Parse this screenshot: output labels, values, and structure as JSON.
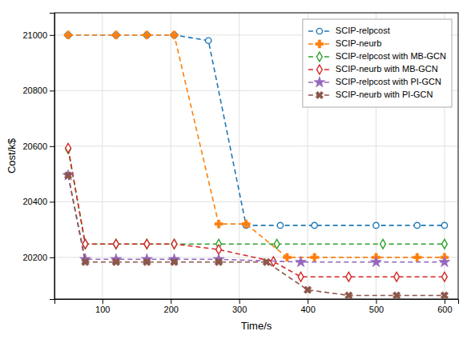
{
  "chart_data": {
    "type": "line",
    "xlabel": "Time/s",
    "ylabel": "Cost/k$",
    "xlim": [
      30,
      620
    ],
    "ylim": [
      20050,
      21080
    ],
    "xticks": [
      100,
      200,
      300,
      400,
      500,
      600
    ],
    "yticks": [
      20200,
      20400,
      20600,
      20800,
      21000
    ],
    "grid": true,
    "legend": "upper right",
    "line_style": "dashed",
    "series": [
      {
        "name": "SCIP-relpcost",
        "color": "#1f77b4",
        "marker": "circle",
        "x": [
          50,
          120,
          165,
          205,
          255,
          310,
          360,
          410,
          500,
          560,
          600
        ],
        "values": [
          21000,
          21000,
          21000,
          21000,
          20980,
          20315,
          20315,
          20315,
          20315,
          20315,
          20315
        ]
      },
      {
        "name": "SCIP-neurb",
        "color": "#ff7f0e",
        "marker": "plus",
        "x": [
          50,
          120,
          165,
          205,
          270,
          310,
          370,
          410,
          500,
          560,
          600
        ],
        "values": [
          21000,
          21000,
          21000,
          21000,
          20320,
          20320,
          20200,
          20200,
          20200,
          20200,
          20200
        ]
      },
      {
        "name": "SCIP-relpcost with MB-GCN",
        "color": "#2ca02c",
        "marker": "diamond",
        "x": [
          50,
          75,
          120,
          165,
          205,
          270,
          355,
          510,
          600
        ],
        "values": [
          20590,
          20248,
          20248,
          20248,
          20248,
          20248,
          20248,
          20248,
          20248
        ]
      },
      {
        "name": "SCIP-neurb with MB-GCN",
        "color": "#d62728",
        "marker": "diamond",
        "x": [
          50,
          75,
          120,
          165,
          205,
          270,
          350,
          390,
          460,
          530,
          600
        ],
        "values": [
          20593,
          20248,
          20248,
          20248,
          20248,
          20228,
          20185,
          20130,
          20130,
          20130,
          20130
        ]
      },
      {
        "name": "SCIP-relpcost with PI-GCN",
        "color": "#9467bd",
        "marker": "star",
        "x": [
          50,
          75,
          120,
          165,
          205,
          270,
          390,
          500,
          600
        ],
        "values": [
          20495,
          20193,
          20193,
          20193,
          20193,
          20193,
          20183,
          20183,
          20183
        ]
      },
      {
        "name": "SCIP-neurb with PI-GCN",
        "color": "#8c564b",
        "marker": "x",
        "x": [
          50,
          75,
          120,
          165,
          205,
          270,
          340,
          400,
          460,
          530,
          600
        ],
        "values": [
          20495,
          20183,
          20183,
          20183,
          20183,
          20183,
          20183,
          20083,
          20063,
          20063,
          20063
        ]
      }
    ]
  }
}
